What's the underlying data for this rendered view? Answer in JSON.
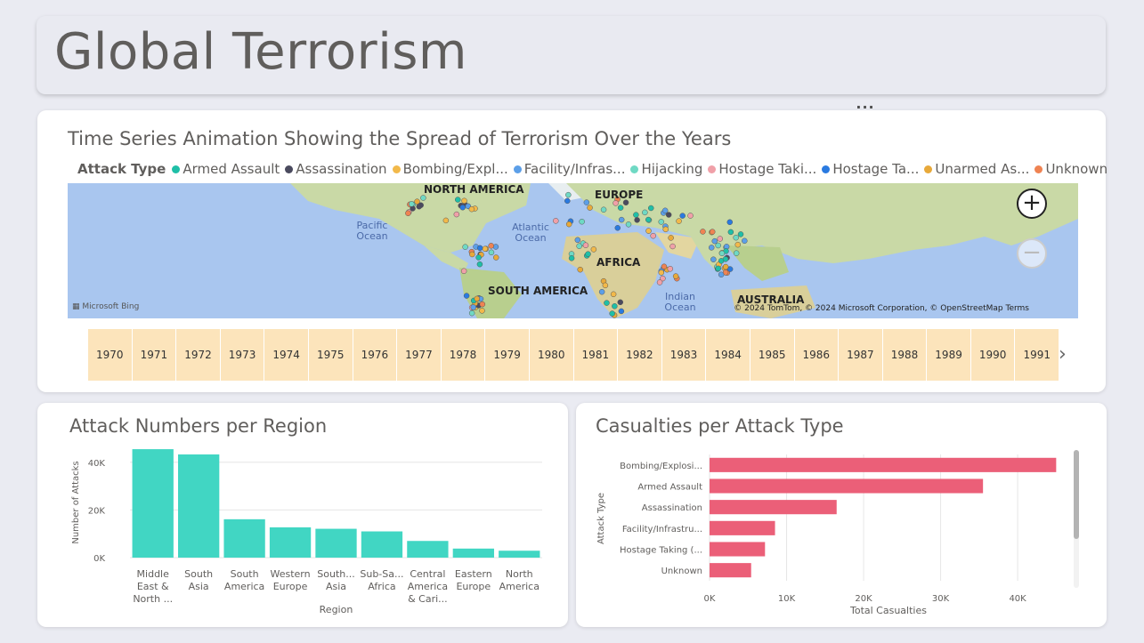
{
  "page_title": "Global Terrorism",
  "more_options": "···",
  "map_visual": {
    "title": "Time Series Animation Showing the Spread of Terrorism Over the Years",
    "legend_title": "Attack Type",
    "legend": [
      {
        "label": "Armed Assault",
        "color": "#1fbfa7"
      },
      {
        "label": "Assassination",
        "color": "#4a4a5e"
      },
      {
        "label": "Bombing/Expl...",
        "color": "#f2b94a"
      },
      {
        "label": "Facility/Infras...",
        "color": "#5c9fe8"
      },
      {
        "label": "Hijacking",
        "color": "#6fd9c4"
      },
      {
        "label": "Hostage Taki...",
        "color": "#f0a0a8"
      },
      {
        "label": "Hostage Ta...",
        "color": "#2a7ae0"
      },
      {
        "label": "Unarmed As...",
        "color": "#e8a93a"
      },
      {
        "label": "Unknown",
        "color": "#ef8352"
      }
    ],
    "continents": {
      "north_america": "NORTH AMERICA",
      "europe": "EUROPE",
      "africa": "AFRICA",
      "south_america": "SOUTH AMERICA",
      "australia": "AUSTRALIA"
    },
    "oceans": {
      "pacific": "Pacific Ocean",
      "atlantic": "Atlantic Ocean",
      "indian": "Indian Ocean"
    },
    "provider": "Microsoft Bing",
    "attribution": "© 2024 TomTom, © 2024 Microsoft Corporation, © OpenStreetMap  Terms",
    "zoom_in": "+",
    "zoom_out": "−",
    "years": [
      "1970",
      "1971",
      "1972",
      "1973",
      "1974",
      "1975",
      "1976",
      "1977",
      "1978",
      "1979",
      "1980",
      "1981",
      "1982",
      "1983",
      "1984",
      "1985",
      "1986",
      "1987",
      "1988",
      "1989",
      "1990",
      "1991"
    ],
    "next_icon": "›"
  },
  "region_chart": {
    "title": "Attack Numbers per Region",
    "chart_data": {
      "type": "bar",
      "categories": [
        "Middle East & North ...",
        "South Asia",
        "South America",
        "Western Europe",
        "South... Asia",
        "Sub-Sa... Africa",
        "Central America & Cari...",
        "Eastern Europe",
        "North America"
      ],
      "category_lines": [
        [
          "Middle",
          "East &",
          "North ..."
        ],
        [
          "South",
          "Asia"
        ],
        [
          "South",
          "America"
        ],
        [
          "Western",
          "Europe"
        ],
        [
          "South...",
          "Asia"
        ],
        [
          "Sub-Sa...",
          "Africa"
        ],
        [
          "Central",
          "America",
          "& Cari..."
        ],
        [
          "Eastern",
          "Europe"
        ],
        [
          "North",
          "America"
        ]
      ],
      "values": [
        45500,
        43300,
        16100,
        12700,
        12100,
        11000,
        7000,
        3800,
        2900
      ],
      "xlabel": "Region",
      "ylabel": "Number of Attacks",
      "ylim": [
        0,
        50000
      ],
      "yticks": [
        {
          "v": 0,
          "label": "0K"
        },
        {
          "v": 20000,
          "label": "20K"
        },
        {
          "v": 40000,
          "label": "40K"
        }
      ],
      "color": "#41d6c3",
      "grid": true
    }
  },
  "casualty_chart": {
    "title": "Casualties per Attack Type",
    "chart_data": {
      "type": "bar",
      "orientation": "horizontal",
      "categories": [
        "Bombing/Explosi...",
        "Armed Assault",
        "Assassination",
        "Facility/Infrastru...",
        "Hostage Taking (...",
        "Unknown"
      ],
      "values": [
        45000,
        35500,
        16500,
        8500,
        7200,
        5400
      ],
      "xlabel": "Total Casualties",
      "ylabel": "Attack Type",
      "xlim": [
        0,
        46000
      ],
      "xticks": [
        {
          "v": 0,
          "label": "0K"
        },
        {
          "v": 10000,
          "label": "10K"
        },
        {
          "v": 20000,
          "label": "20K"
        },
        {
          "v": 30000,
          "label": "30K"
        },
        {
          "v": 40000,
          "label": "40K"
        }
      ],
      "color": "#eb5f78",
      "grid": true
    }
  }
}
